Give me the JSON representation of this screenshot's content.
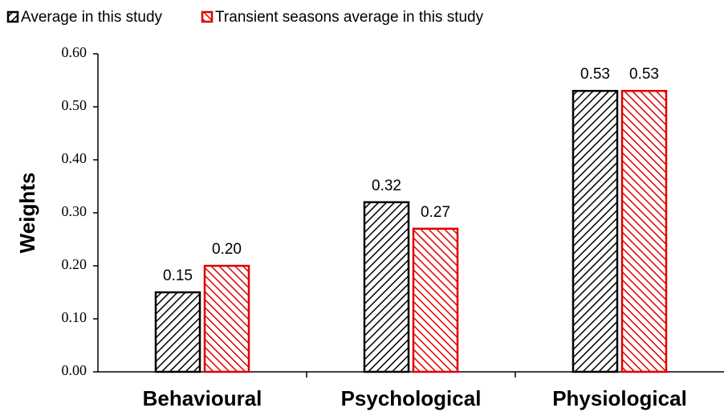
{
  "chart_data": {
    "type": "bar",
    "y_label": "Weights",
    "categories": [
      "Behavioural",
      "Psychological",
      "Physiological"
    ],
    "series": [
      {
        "name": "Average in this study",
        "color": "#000000",
        "values": [
          0.15,
          0.32,
          0.53
        ],
        "value_labels": [
          "0.15",
          "0.32",
          "0.53"
        ]
      },
      {
        "name": "Transient seasons average in this study",
        "color": "#e00000",
        "values": [
          0.2,
          0.27,
          0.53
        ],
        "value_labels": [
          "0.20",
          "0.27",
          "0.53"
        ]
      }
    ],
    "ylim": [
      0,
      0.6
    ],
    "yticks": [
      {
        "value": 0,
        "label": "0.00"
      },
      {
        "value": 0.1,
        "label": "0.10"
      },
      {
        "value": 0.2,
        "label": "0.20"
      },
      {
        "value": 0.3,
        "label": "0.30"
      },
      {
        "value": 0.4,
        "label": "0.40"
      },
      {
        "value": 0.5,
        "label": "0.50"
      },
      {
        "value": 0.6,
        "label": "0.60"
      }
    ],
    "legend": "top",
    "grid": false
  }
}
